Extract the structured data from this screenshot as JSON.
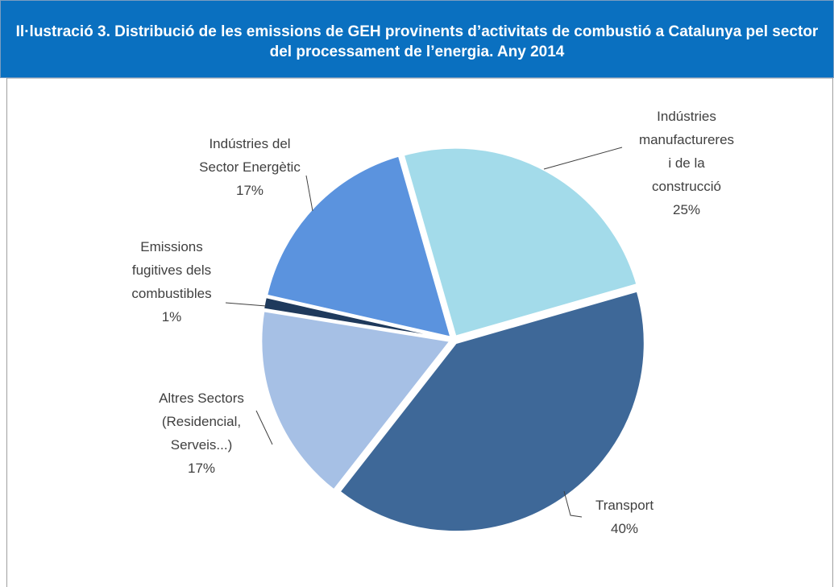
{
  "chart_data": {
    "type": "pie",
    "title": "Il·lustració 3. Distribució de les emissions de GEH provinents d’activitats de combustió a Catalunya pel sector del processament de l’energia. Any 2014",
    "categories": [
      [
        "Indústries",
        "manufactureres",
        "i de la",
        "construcció"
      ],
      [
        "Transport"
      ],
      [
        "Altres Sectors",
        "(Residencial,",
        "Serveis...)"
      ],
      [
        "Emissions",
        "fugitives dels",
        "combustibles"
      ],
      [
        "Indústries del",
        "Sector Energètic"
      ]
    ],
    "values": [
      25,
      40,
      17,
      1,
      17
    ],
    "value_labels": [
      "25%",
      "40%",
      "17%",
      "1%",
      "17%"
    ],
    "colors": [
      "#a3dbea",
      "#3e6898",
      "#a6c0e5",
      "#1f3a5c",
      "#5b93de"
    ]
  }
}
